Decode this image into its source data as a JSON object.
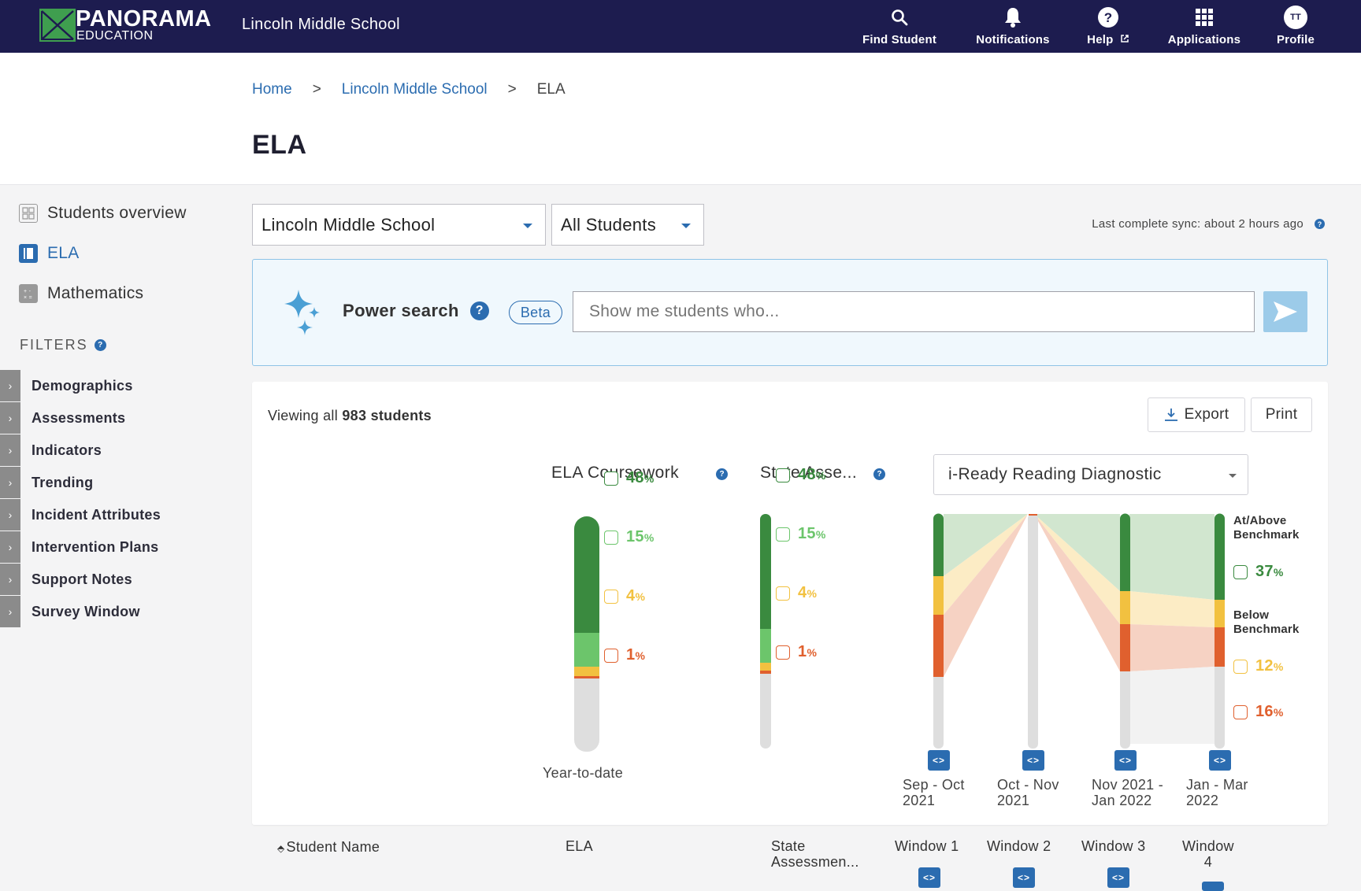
{
  "topnav": {
    "brand_main": "PANORAMA",
    "brand_sub": "EDUCATION",
    "school_title": "Lincoln Middle School",
    "items": [
      {
        "label": "Find Student",
        "icon": "search-icon"
      },
      {
        "label": "Notifications",
        "icon": "bell-icon"
      },
      {
        "label": "Help",
        "icon": "help-icon"
      },
      {
        "label": "Applications",
        "icon": "grid-icon"
      },
      {
        "label": "Profile",
        "icon": "avatar"
      }
    ],
    "avatar_initials": "TT"
  },
  "breadcrumb": {
    "home": "Home",
    "school": "Lincoln Middle School",
    "current": "ELA",
    "separator": ">"
  },
  "page_title": "ELA",
  "sidebar": {
    "nav": [
      {
        "label": "Students overview",
        "icon": "puzzle-icon"
      },
      {
        "label": "ELA",
        "icon": "book-icon"
      },
      {
        "label": "Mathematics",
        "icon": "calculator-icon"
      }
    ],
    "filters_title": "FILTERS",
    "filters": [
      "Demographics",
      "Assessments",
      "Indicators",
      "Trending",
      "Incident Attributes",
      "Intervention Plans",
      "Support Notes",
      "Survey Window"
    ]
  },
  "controls": {
    "school_select": "Lincoln Middle School",
    "students_select": "All Students",
    "sync_text": "Last complete sync: about 2 hours ago"
  },
  "power_search": {
    "label": "Power search",
    "badge": "Beta",
    "placeholder": "Show me students who..."
  },
  "card": {
    "viewing_prefix": "Viewing all",
    "viewing_count": "983 students",
    "export_label": "Export",
    "print_label": "Print",
    "col1_title": "ELA Coursework",
    "col2_title": "State Asse...",
    "iready_select": "i-Ready Reading Diagnostic",
    "ytd_label": "Year-to-date",
    "ela_pcts": [
      "48",
      "15",
      "4",
      "1"
    ],
    "state_pcts": [
      "48",
      "15",
      "4",
      "1"
    ],
    "iready_at_above_label_1": "At/Above",
    "iready_at_above_label_2": "Benchmark",
    "iready_below_label_1": "Below",
    "iready_below_label_2": "Benchmark",
    "iready_pcts": [
      "37",
      "12",
      "16"
    ],
    "pct_suffix": "%",
    "windows": [
      {
        "line1": "Sep - Oct",
        "line2": "2021"
      },
      {
        "line1": "Oct - Nov",
        "line2": "2021"
      },
      {
        "line1": "Nov 2021 -",
        "line2": "Jan 2022"
      },
      {
        "line1": "Jan - Mar",
        "line2": "2022"
      }
    ],
    "window_btn": "<>"
  },
  "table_header": {
    "student_name": "Student Name",
    "ela": "ELA",
    "state_1": "State",
    "state_2": "Assessmen...",
    "window1": "Window 1",
    "window2": "Window 2",
    "window3": "Window 3",
    "window4_1": "Window",
    "window4_2": "4"
  },
  "colors": {
    "nav_bg": "#1d1c4f",
    "accent": "#2b6cb0",
    "dark_green": "#3a8a3f",
    "light_green": "#6cc56b",
    "yellow": "#f2c140",
    "orange": "#e0602e",
    "gray": "#dedede"
  }
}
